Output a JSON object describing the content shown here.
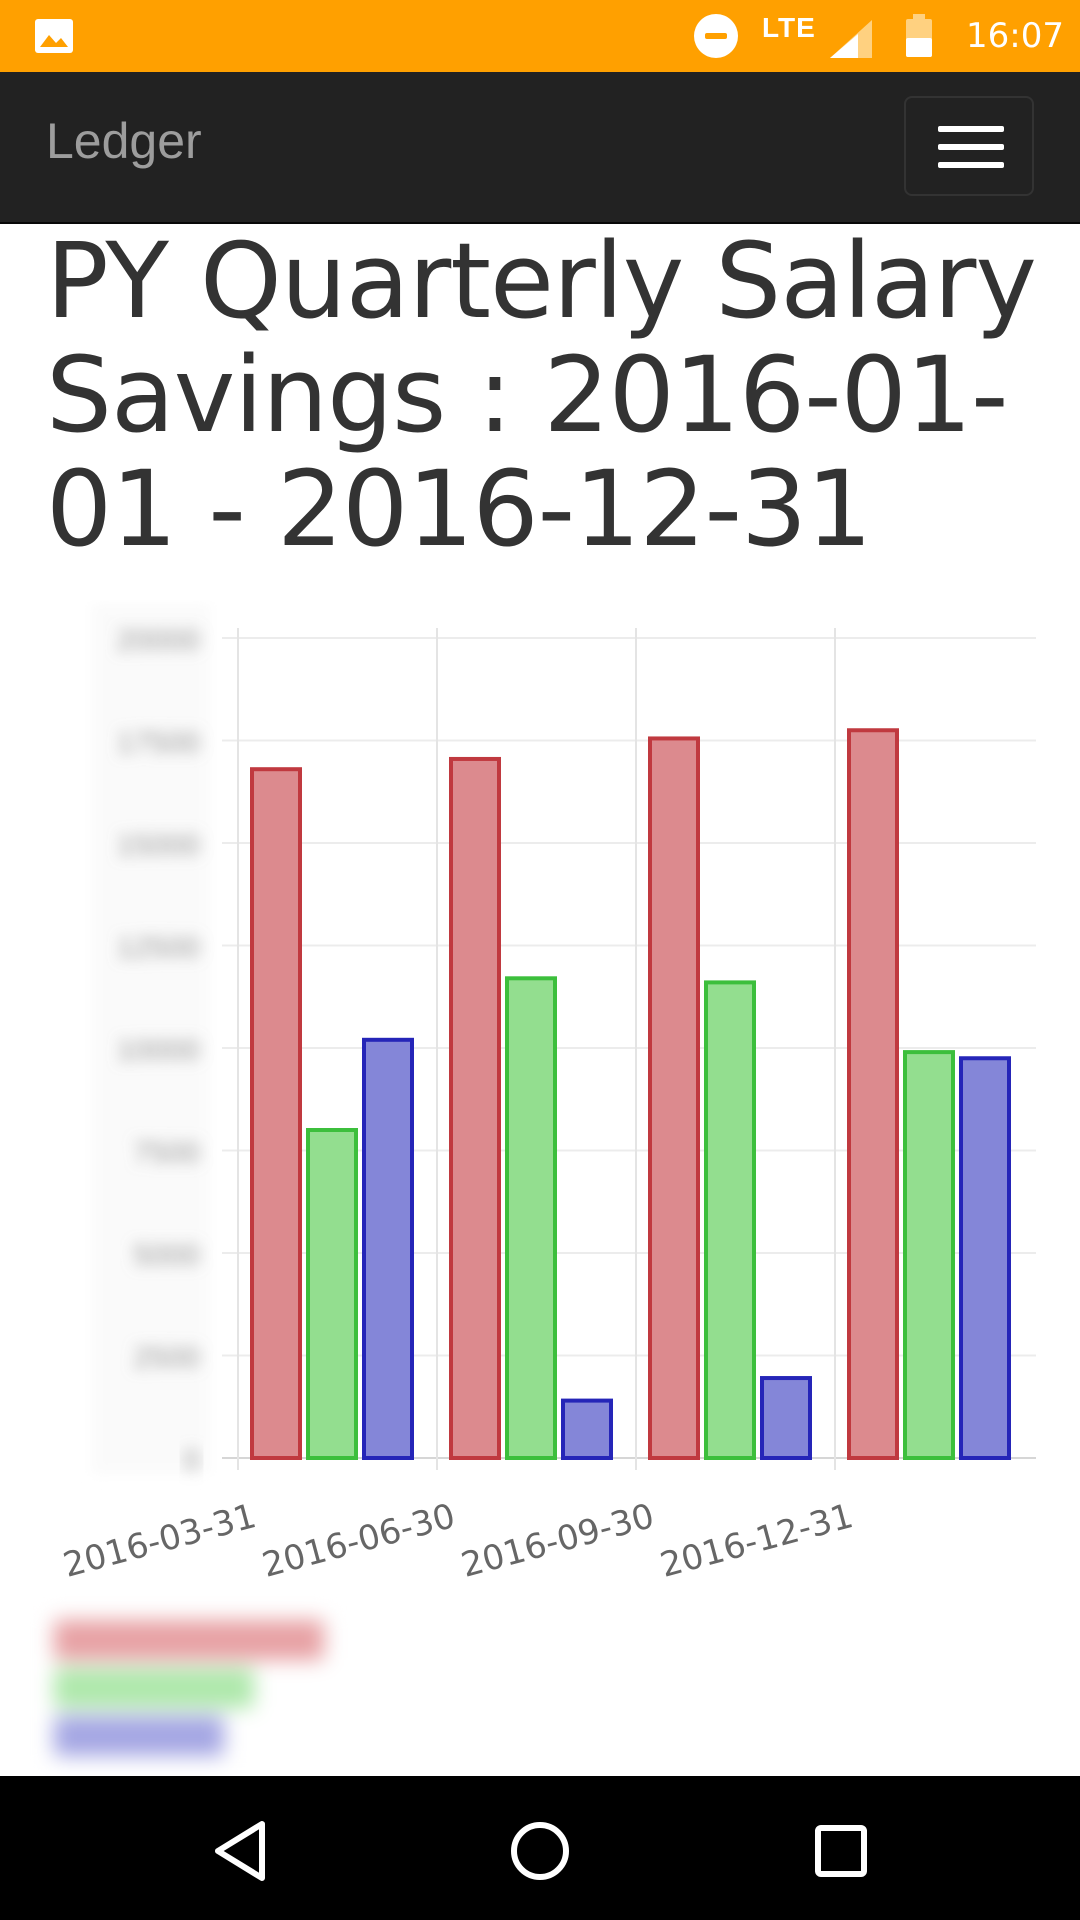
{
  "status_bar": {
    "time": "16:07",
    "network": "LTE",
    "icons": [
      "gallery-icon",
      "do-not-disturb-icon",
      "signal-icon",
      "battery-icon"
    ],
    "background": "#ffa000"
  },
  "navbar": {
    "brand": "Ledger",
    "toggle_icon": "hamburger-menu-icon"
  },
  "page": {
    "title": "PY Quarterly Salary Savings : 2016-01-01 - 2016-12-31"
  },
  "chart_data": {
    "type": "bar",
    "categories": [
      "2016-03-31",
      "2016-06-30",
      "2016-09-30",
      "2016-12-31"
    ],
    "series": [
      {
        "values": [
          16800,
          17050,
          17550,
          17750
        ],
        "color": "#dc8a8e",
        "border": "#c0393f"
      },
      {
        "values": [
          8000,
          11700,
          11600,
          9900
        ],
        "color": "#93de8f",
        "border": "#3cbf3c"
      },
      {
        "values": [
          10200,
          1400,
          1950,
          9750
        ],
        "color": "#8486d8",
        "border": "#2525b8"
      }
    ],
    "ylim": [
      0,
      20000
    ],
    "yticks": [
      0,
      2500,
      5000,
      7500,
      10000,
      12500,
      15000,
      17500,
      20000
    ],
    "grid": true,
    "legend": "bottom-left"
  },
  "nav_bar": {
    "icons": [
      "back-icon",
      "home-icon",
      "recents-icon"
    ]
  }
}
